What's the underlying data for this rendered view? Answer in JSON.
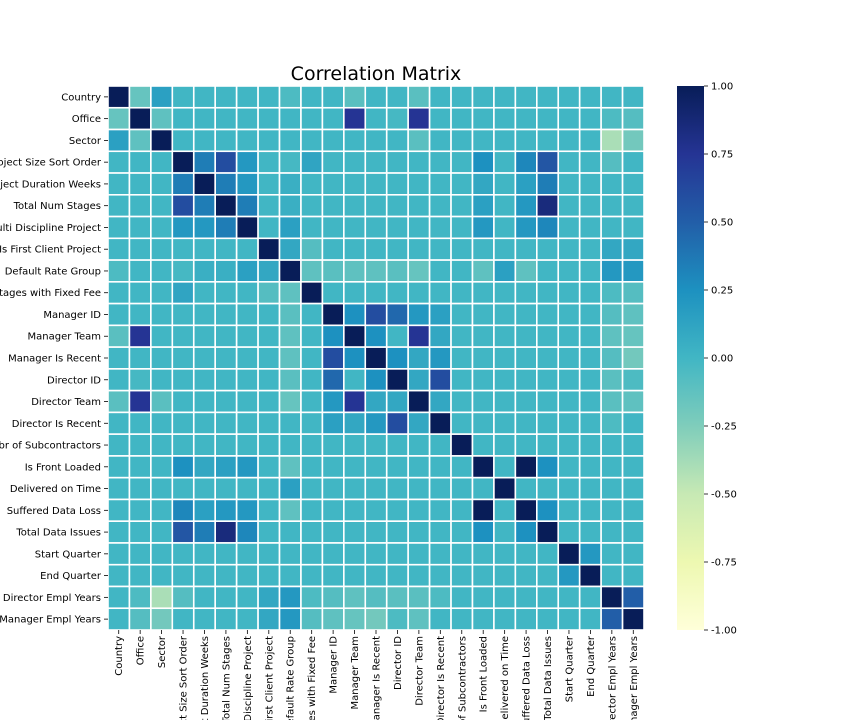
{
  "chart_data": {
    "type": "heatmap",
    "title": "Correlation Matrix",
    "labels": [
      "Country",
      "Office",
      "Sector",
      "Project Size Sort Order",
      "Project Duration Weeks",
      "Total Num Stages",
      "Multi Discipline Project",
      "Is First Client Project",
      "Default Rate Group",
      "Stages with Fixed Fee",
      "Manager ID",
      "Manager Team",
      "Manager Is Recent",
      "Director ID",
      "Director Team",
      "Director Is Recent",
      "Nbr of Subcontractors",
      "Is Front Loaded",
      "Delivered on Time",
      "Suffered Data Loss",
      "Total Data Issues",
      "Start Quarter",
      "End Quarter",
      "Director Empl Years",
      "Manager Empl Years"
    ],
    "default_value": 0.0,
    "overrides": [
      [
        0,
        1,
        -0.15
      ],
      [
        0,
        2,
        0.15
      ],
      [
        0,
        8,
        -0.05
      ],
      [
        0,
        11,
        -0.1
      ],
      [
        0,
        14,
        -0.1
      ],
      [
        1,
        2,
        -0.12
      ],
      [
        1,
        11,
        0.75
      ],
      [
        1,
        14,
        0.75
      ],
      [
        1,
        13,
        -0.02
      ],
      [
        1,
        23,
        -0.05
      ],
      [
        1,
        24,
        -0.08
      ],
      [
        2,
        14,
        -0.1
      ],
      [
        2,
        23,
        -0.4
      ],
      [
        2,
        24,
        -0.2
      ],
      [
        3,
        4,
        0.35
      ],
      [
        3,
        5,
        0.6
      ],
      [
        3,
        6,
        0.2
      ],
      [
        3,
        9,
        0.12
      ],
      [
        3,
        17,
        0.25
      ],
      [
        3,
        19,
        0.3
      ],
      [
        3,
        20,
        0.55
      ],
      [
        3,
        8,
        -0.02
      ],
      [
        3,
        23,
        -0.08
      ],
      [
        4,
        5,
        0.35
      ],
      [
        4,
        6,
        0.2
      ],
      [
        4,
        8,
        0.05
      ],
      [
        4,
        17,
        0.1
      ],
      [
        4,
        19,
        0.15
      ],
      [
        4,
        20,
        0.35
      ],
      [
        5,
        6,
        0.35
      ],
      [
        5,
        8,
        0.05
      ],
      [
        5,
        17,
        0.15
      ],
      [
        5,
        19,
        0.2
      ],
      [
        5,
        20,
        0.85
      ],
      [
        6,
        8,
        0.15
      ],
      [
        6,
        17,
        0.2
      ],
      [
        6,
        19,
        0.2
      ],
      [
        6,
        20,
        0.3
      ],
      [
        7,
        8,
        0.1
      ],
      [
        7,
        9,
        -0.08
      ],
      [
        7,
        23,
        0.1
      ],
      [
        7,
        24,
        0.1
      ],
      [
        8,
        9,
        -0.12
      ],
      [
        8,
        10,
        -0.1
      ],
      [
        8,
        11,
        -0.12
      ],
      [
        8,
        12,
        -0.12
      ],
      [
        8,
        13,
        -0.1
      ],
      [
        8,
        14,
        -0.15
      ],
      [
        8,
        17,
        -0.12
      ],
      [
        8,
        18,
        0.15
      ],
      [
        8,
        19,
        -0.12
      ],
      [
        8,
        23,
        0.2
      ],
      [
        8,
        24,
        0.2
      ],
      [
        9,
        23,
        -0.05
      ],
      [
        9,
        24,
        -0.08
      ],
      [
        10,
        11,
        0.25
      ],
      [
        10,
        12,
        0.6
      ],
      [
        10,
        13,
        0.45
      ],
      [
        10,
        14,
        0.2
      ],
      [
        10,
        15,
        0.15
      ],
      [
        10,
        23,
        -0.08
      ],
      [
        10,
        24,
        -0.12
      ],
      [
        11,
        12,
        0.25
      ],
      [
        11,
        14,
        0.75
      ],
      [
        11,
        15,
        0.1
      ],
      [
        11,
        23,
        -0.12
      ],
      [
        11,
        24,
        -0.15
      ],
      [
        12,
        13,
        0.25
      ],
      [
        12,
        14,
        0.1
      ],
      [
        12,
        15,
        0.2
      ],
      [
        12,
        23,
        -0.08
      ],
      [
        12,
        24,
        -0.2
      ],
      [
        13,
        14,
        0.1
      ],
      [
        13,
        15,
        0.6
      ],
      [
        13,
        23,
        -0.1
      ],
      [
        13,
        24,
        -0.05
      ],
      [
        14,
        15,
        0.1
      ],
      [
        14,
        23,
        -0.1
      ],
      [
        14,
        24,
        -0.12
      ],
      [
        15,
        23,
        -0.05
      ],
      [
        17,
        19,
        1.0
      ],
      [
        17,
        20,
        0.25
      ],
      [
        19,
        20,
        0.25
      ],
      [
        21,
        22,
        0.2
      ],
      [
        23,
        24,
        0.5
      ]
    ],
    "vmin": -1.0,
    "vmax": 1.0,
    "colormap": "YlGnBu",
    "colorbar_ticks": [
      "1.00",
      "0.75",
      "0.50",
      "0.25",
      "0.00",
      "-0.25",
      "-0.50",
      "-0.75",
      "-1.00"
    ],
    "grid_lines": "white",
    "legend": "colorbar-right"
  }
}
